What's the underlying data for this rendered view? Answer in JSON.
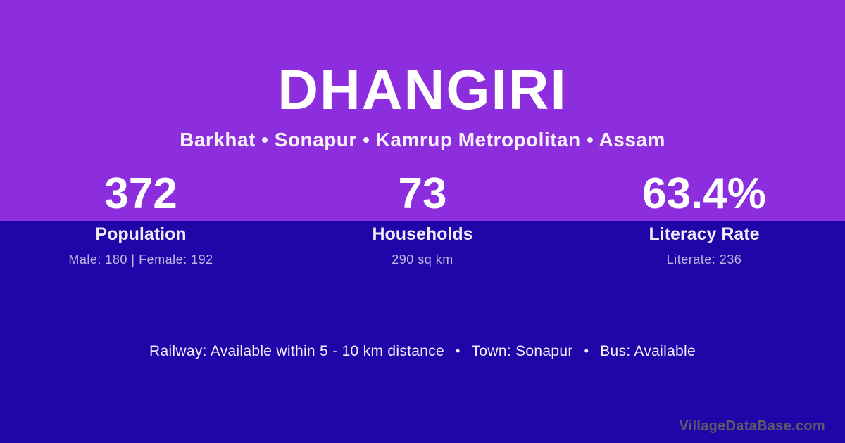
{
  "header": {
    "village_name": "DHANGIRI",
    "location_path": "Barkhat • Sonapur • Kamrup Metropolitan • Assam"
  },
  "stats": [
    {
      "value": "372",
      "label": "Population",
      "detail": "Male: 180 | Female: 192"
    },
    {
      "value": "73",
      "label": "Households",
      "detail": "290 sq km"
    },
    {
      "value": "63.4%",
      "label": "Literacy Rate",
      "detail": "Literate: 236"
    }
  ],
  "facilities": {
    "items": [
      "Railway: Available within 5 - 10 km distance",
      "Town: Sonapur",
      "Bus: Available"
    ],
    "separator": "•"
  },
  "watermark": "VillageDataBase.com",
  "colors": {
    "top_background": "#8C2DDE",
    "bottom_background": "#2105A8",
    "primary_text": "#FFFFFF",
    "muted_text": "#BFB9E2",
    "watermark_text": "#5A5A68"
  }
}
